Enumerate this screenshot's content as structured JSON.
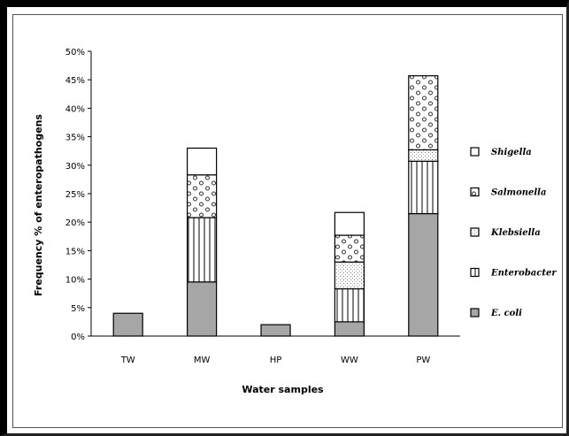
{
  "chart_data": {
    "type": "bar",
    "stacked": true,
    "categories": [
      "TW",
      "MW",
      "HP",
      "WW",
      "PW"
    ],
    "series": [
      {
        "name": "E. coli",
        "values": [
          4,
          9.5,
          2,
          2.5,
          21.5
        ]
      },
      {
        "name": "Enterobacter",
        "values": [
          0,
          11.3,
          0,
          5.8,
          9.2
        ]
      },
      {
        "name": "Klebsiella",
        "values": [
          0,
          0,
          0,
          4.7,
          2
        ]
      },
      {
        "name": "Salmonella",
        "values": [
          0,
          7.5,
          0,
          4.7,
          13
        ]
      },
      {
        "name": "Shigella",
        "values": [
          0,
          4.7,
          0,
          4,
          0
        ]
      }
    ],
    "series_colors": [
      "#a6a6a6",
      "#ffffff",
      "#ffffff",
      "#ffffff",
      "#ffffff"
    ],
    "series_patterns": [
      "solid",
      "vertical-lines",
      "dots",
      "circles",
      "plain"
    ],
    "xlabel": "Water samples",
    "ylabel": "Frequency % of enteropathogens",
    "ylim": [
      0,
      50
    ],
    "ytick_step": 5,
    "ytick_suffix": "%",
    "grid": false,
    "legend_position": "right",
    "legend_order": [
      "Shigella",
      "Salmonella",
      "Klebsiella",
      "Enterobacter",
      "E. coli"
    ]
  }
}
